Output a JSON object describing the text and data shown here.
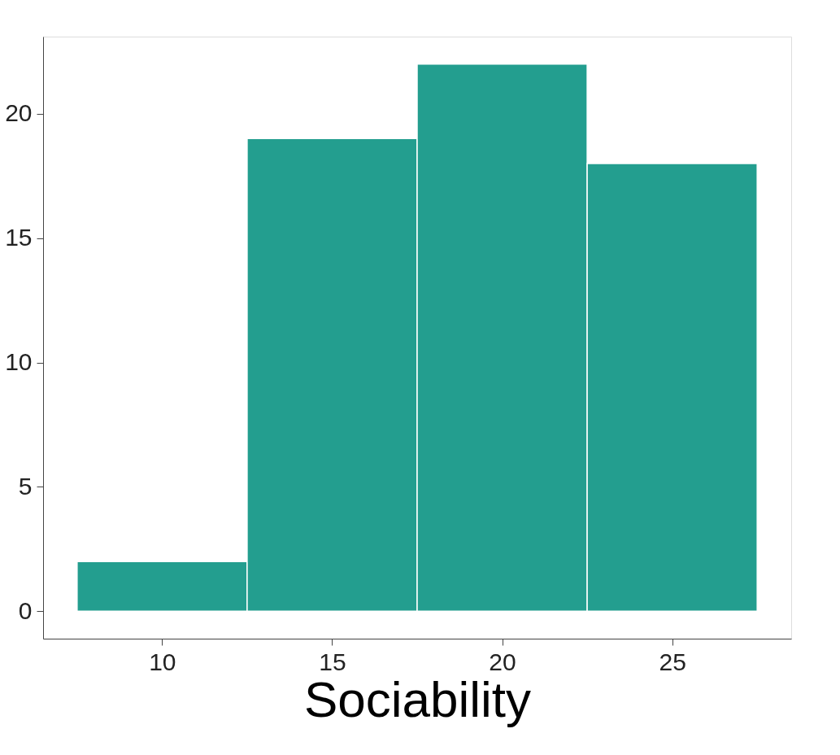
{
  "chart_data": {
    "type": "histogram",
    "xlabel": "Sociability",
    "bins": [
      7.5,
      12.5,
      17.5,
      22.5,
      27.5
    ],
    "values": [
      2,
      19,
      22,
      18
    ],
    "color": "#239e8f",
    "xlim": [
      6.5,
      28.5
    ],
    "xticks": [
      10,
      15,
      20,
      25
    ],
    "ylim": [
      -1.1,
      23.1
    ],
    "yticks": [
      0,
      5,
      10,
      15,
      20
    ],
    "grid": false
  }
}
